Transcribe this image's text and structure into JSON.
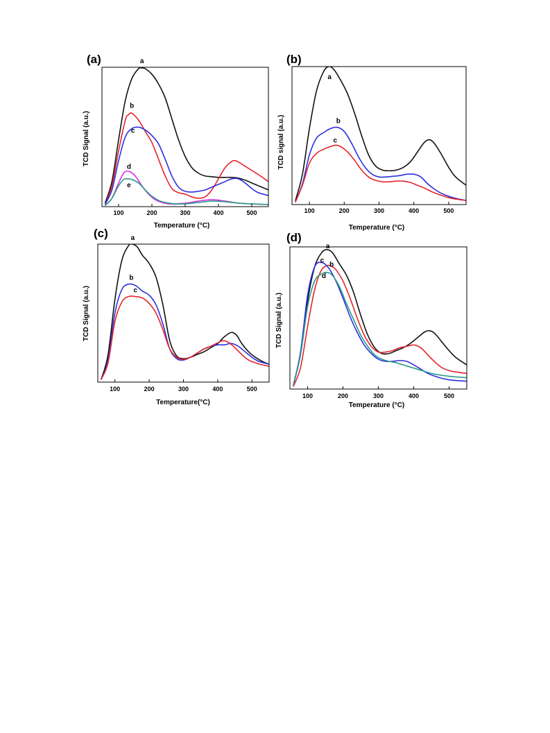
{
  "figure": {
    "background": "#ffffff",
    "plot_background": "#ffffff"
  },
  "colors": {
    "black": "#111111",
    "red": "#e3252b",
    "blue": "#2a2ee0",
    "magenta": "#d431e0",
    "teal": "#2a9a8a"
  },
  "chart_data": [
    {
      "panel": "(a)",
      "type": "line",
      "xlabel": "Temperature (°C)",
      "ylabel": "TCD Signal (a.u.)",
      "xlim": [
        50,
        550
      ],
      "ylim": [
        0,
        100
      ],
      "xticks": [
        100,
        200,
        300,
        400,
        500
      ],
      "series": [
        {
          "name": "a",
          "color": "black",
          "x": [
            60,
            80,
            100,
            120,
            140,
            160,
            170,
            180,
            200,
            220,
            240,
            260,
            280,
            300,
            320,
            340,
            360,
            380,
            400,
            420,
            440,
            460,
            480,
            500,
            520,
            550
          ],
          "y": [
            3,
            18,
            48,
            76,
            92,
            99,
            99.5,
            99,
            95,
            88,
            78,
            63,
            48,
            36,
            28,
            24,
            22,
            21.5,
            21,
            21,
            21,
            20.5,
            19,
            17,
            15,
            12
          ]
        },
        {
          "name": "b",
          "color": "red",
          "x": [
            60,
            80,
            100,
            120,
            130,
            140,
            160,
            180,
            200,
            220,
            240,
            260,
            280,
            300,
            320,
            340,
            360,
            380,
            400,
            420,
            440,
            450,
            460,
            480,
            500,
            520,
            550
          ],
          "y": [
            2,
            15,
            40,
            62,
            66,
            67,
            62,
            54,
            46,
            34,
            22,
            13,
            10,
            9,
            7,
            6,
            7,
            12,
            20,
            28,
            32.5,
            33,
            32,
            29,
            26,
            23,
            18
          ]
        },
        {
          "name": "c",
          "color": "blue",
          "x": [
            60,
            80,
            100,
            120,
            140,
            160,
            180,
            200,
            220,
            240,
            260,
            280,
            300,
            320,
            340,
            360,
            380,
            400,
            420,
            440,
            460,
            480,
            500,
            520,
            550
          ],
          "y": [
            2,
            12,
            33,
            50,
            56,
            57,
            55,
            51,
            45,
            34,
            22,
            14,
            11,
            10.5,
            11,
            12,
            14,
            16,
            18,
            20,
            20,
            17,
            13,
            10,
            8
          ]
        },
        {
          "name": "d",
          "color": "magenta",
          "x": [
            60,
            80,
            100,
            115,
            125,
            135,
            150,
            170,
            190,
            210,
            230,
            250,
            270,
            300,
            340,
            380,
            420,
            460,
            500,
            550
          ],
          "y": [
            1,
            6,
            17,
            24,
            25.5,
            25,
            22,
            15,
            9,
            5,
            3,
            2,
            2,
            2.5,
            4,
            5,
            4,
            2.5,
            2,
            1.5
          ]
        },
        {
          "name": "e",
          "color": "teal",
          "x": [
            60,
            80,
            100,
            115,
            125,
            140,
            160,
            180,
            200,
            220,
            240,
            270,
            300,
            340,
            380,
            420,
            460,
            500,
            550
          ],
          "y": [
            1,
            6,
            15,
            19.5,
            20,
            19.5,
            17,
            12,
            7.5,
            4.5,
            3,
            2,
            2,
            3,
            4,
            3.5,
            2.5,
            2,
            1.5
          ]
        }
      ],
      "curve_labels": [
        {
          "text": "a",
          "x": 170,
          "y": 103
        },
        {
          "text": "b",
          "x": 140,
          "y": 71
        },
        {
          "text": "c",
          "x": 143,
          "y": 53
        },
        {
          "text": "d",
          "x": 131,
          "y": 27
        },
        {
          "text": "e",
          "x": 131,
          "y": 14
        }
      ]
    },
    {
      "panel": "(b)",
      "type": "line",
      "xlabel": "Temperature (°C)",
      "ylabel": "TCD signal (a.u.)",
      "xlim": [
        50,
        550
      ],
      "ylim": [
        0,
        100
      ],
      "xticks": [
        100,
        200,
        300,
        400,
        500
      ],
      "series": [
        {
          "name": "a",
          "color": "black",
          "x": [
            60,
            80,
            100,
            120,
            140,
            155,
            170,
            190,
            210,
            230,
            250,
            270,
            290,
            310,
            330,
            350,
            370,
            390,
            410,
            430,
            445,
            460,
            480,
            500,
            520,
            550
          ],
          "y": [
            3,
            22,
            55,
            82,
            96,
            100,
            98,
            90,
            80,
            66,
            50,
            36,
            28,
            25,
            24.5,
            25,
            27,
            31,
            38,
            45,
            47,
            44,
            36,
            27,
            20,
            14
          ]
        },
        {
          "name": "b",
          "color": "blue",
          "x": [
            60,
            80,
            100,
            120,
            140,
            160,
            180,
            200,
            220,
            240,
            260,
            280,
            300,
            320,
            340,
            360,
            380,
            400,
            420,
            440,
            460,
            480,
            500,
            520,
            550
          ],
          "y": [
            2,
            15,
            36,
            48,
            52,
            55,
            56,
            53,
            45,
            35,
            27,
            22,
            20,
            20,
            20.5,
            21,
            22,
            22,
            20,
            15,
            11,
            8,
            6,
            4.5,
            3
          ]
        },
        {
          "name": "c",
          "color": "red",
          "x": [
            60,
            80,
            100,
            120,
            140,
            160,
            175,
            190,
            210,
            230,
            250,
            270,
            290,
            310,
            330,
            350,
            370,
            390,
            410,
            430,
            450,
            470,
            500,
            520,
            550
          ],
          "y": [
            2,
            14,
            30,
            37,
            40,
            42,
            43,
            42,
            38,
            32,
            25,
            20,
            17.5,
            16.5,
            16.5,
            17,
            17,
            16,
            14,
            12,
            9.5,
            7.5,
            5,
            4,
            3
          ]
        }
      ],
      "curve_labels": [
        {
          "text": "a",
          "x": 158,
          "y": 91
        },
        {
          "text": "b",
          "x": 183,
          "y": 59
        },
        {
          "text": "c",
          "x": 174,
          "y": 45
        }
      ]
    },
    {
      "panel": "(c)",
      "type": "line",
      "xlabel": "Temperature(°C)",
      "ylabel": "TCD Signal (a.u.)",
      "xlim": [
        50,
        550
      ],
      "ylim": [
        0,
        100
      ],
      "xticks": [
        100,
        200,
        300,
        400,
        500
      ],
      "series": [
        {
          "name": "a",
          "color": "black",
          "x": [
            60,
            80,
            100,
            120,
            140,
            150,
            165,
            180,
            200,
            220,
            240,
            260,
            280,
            300,
            320,
            340,
            360,
            380,
            400,
            420,
            440,
            455,
            470,
            490,
            510,
            530,
            550
          ],
          "y": [
            2,
            20,
            60,
            88,
            99,
            100,
            98,
            92,
            86,
            76,
            56,
            30,
            19,
            17,
            18,
            20,
            22,
            25,
            28,
            33,
            36,
            34,
            28,
            22,
            18,
            15,
            13
          ]
        },
        {
          "name": "b",
          "color": "blue",
          "x": [
            60,
            80,
            100,
            120,
            140,
            160,
            180,
            200,
            220,
            240,
            260,
            280,
            300,
            320,
            340,
            360,
            380,
            400,
            420,
            440,
            460,
            480,
            500,
            520,
            550
          ],
          "y": [
            2,
            16,
            50,
            67,
            71,
            70,
            66,
            63,
            56,
            42,
            24,
            17,
            16,
            18,
            21,
            24,
            26,
            27,
            27,
            28,
            26,
            22,
            18,
            15,
            13
          ]
        },
        {
          "name": "c",
          "color": "red",
          "x": [
            60,
            80,
            100,
            120,
            140,
            160,
            180,
            200,
            220,
            240,
            260,
            280,
            300,
            320,
            340,
            360,
            380,
            400,
            415,
            430,
            450,
            470,
            490,
            510,
            530,
            550
          ],
          "y": [
            2,
            14,
            44,
            58,
            62,
            62,
            61,
            57,
            50,
            38,
            24,
            18,
            16.5,
            18,
            21,
            24,
            26,
            28.5,
            30,
            29,
            25,
            20,
            16,
            14,
            12.5,
            11.5
          ]
        }
      ],
      "curve_labels": [
        {
          "text": "a",
          "x": 152,
          "y": 103
        },
        {
          "text": "b",
          "x": 148,
          "y": 74
        },
        {
          "text": "c",
          "x": 160,
          "y": 65
        }
      ]
    },
    {
      "panel": "(d)",
      "type": "line",
      "xlabel": "Temperature (°C)",
      "ylabel": "TCD Signal (a.u.)",
      "xlim": [
        50,
        550
      ],
      "ylim": [
        0,
        100
      ],
      "xticks": [
        100,
        200,
        300,
        400,
        500
      ],
      "series": [
        {
          "name": "a",
          "color": "black",
          "x": [
            60,
            80,
            100,
            120,
            140,
            155,
            170,
            190,
            210,
            230,
            250,
            270,
            290,
            310,
            330,
            350,
            370,
            390,
            410,
            430,
            445,
            460,
            480,
            500,
            520,
            550
          ],
          "y": [
            3,
            25,
            62,
            86,
            96,
            98,
            96,
            88,
            80,
            68,
            52,
            38,
            29,
            25,
            25,
            27,
            29,
            32,
            36,
            40,
            41,
            39,
            33,
            27,
            22,
            17
          ]
        },
        {
          "name": "b",
          "color": "red",
          "x": [
            60,
            80,
            100,
            120,
            140,
            160,
            170,
            180,
            200,
            220,
            240,
            260,
            280,
            300,
            320,
            340,
            360,
            380,
            400,
            420,
            440,
            460,
            480,
            500,
            520,
            550
          ],
          "y": [
            2,
            15,
            44,
            70,
            84,
            87,
            86,
            84,
            76,
            64,
            50,
            38,
            30,
            26,
            26,
            27,
            29,
            30,
            31,
            29,
            24,
            19,
            15,
            13,
            12,
            11
          ]
        },
        {
          "name": "c",
          "color": "blue",
          "x": [
            60,
            80,
            100,
            120,
            140,
            160,
            180,
            200,
            220,
            240,
            260,
            280,
            300,
            320,
            340,
            360,
            380,
            400,
            420,
            440,
            460,
            480,
            500,
            520,
            550
          ],
          "y": [
            3,
            26,
            66,
            86,
            89,
            85,
            76,
            64,
            51,
            40,
            31,
            25,
            21,
            19.5,
            19.5,
            20,
            19.5,
            17,
            14,
            11,
            9,
            7.5,
            6.5,
            6,
            5.5
          ]
        },
        {
          "name": "d",
          "color": "teal",
          "x": [
            60,
            80,
            100,
            120,
            140,
            155,
            170,
            190,
            210,
            230,
            250,
            270,
            290,
            310,
            330,
            350,
            370,
            390,
            410,
            430,
            450,
            470,
            500,
            520,
            550
          ],
          "y": [
            3,
            24,
            58,
            76,
            81,
            82,
            80,
            72,
            60,
            49,
            38,
            30,
            24,
            21,
            19.5,
            18.5,
            17,
            15.5,
            14,
            12.5,
            11,
            10,
            9,
            8.5,
            8
          ]
        }
      ],
      "curve_labels": [
        {
          "text": "a",
          "x": 157,
          "y": 99
        },
        {
          "text": "c",
          "x": 141,
          "y": 89
        },
        {
          "text": "b",
          "x": 168,
          "y": 86
        },
        {
          "text": "d",
          "x": 146,
          "y": 78
        }
      ]
    }
  ]
}
